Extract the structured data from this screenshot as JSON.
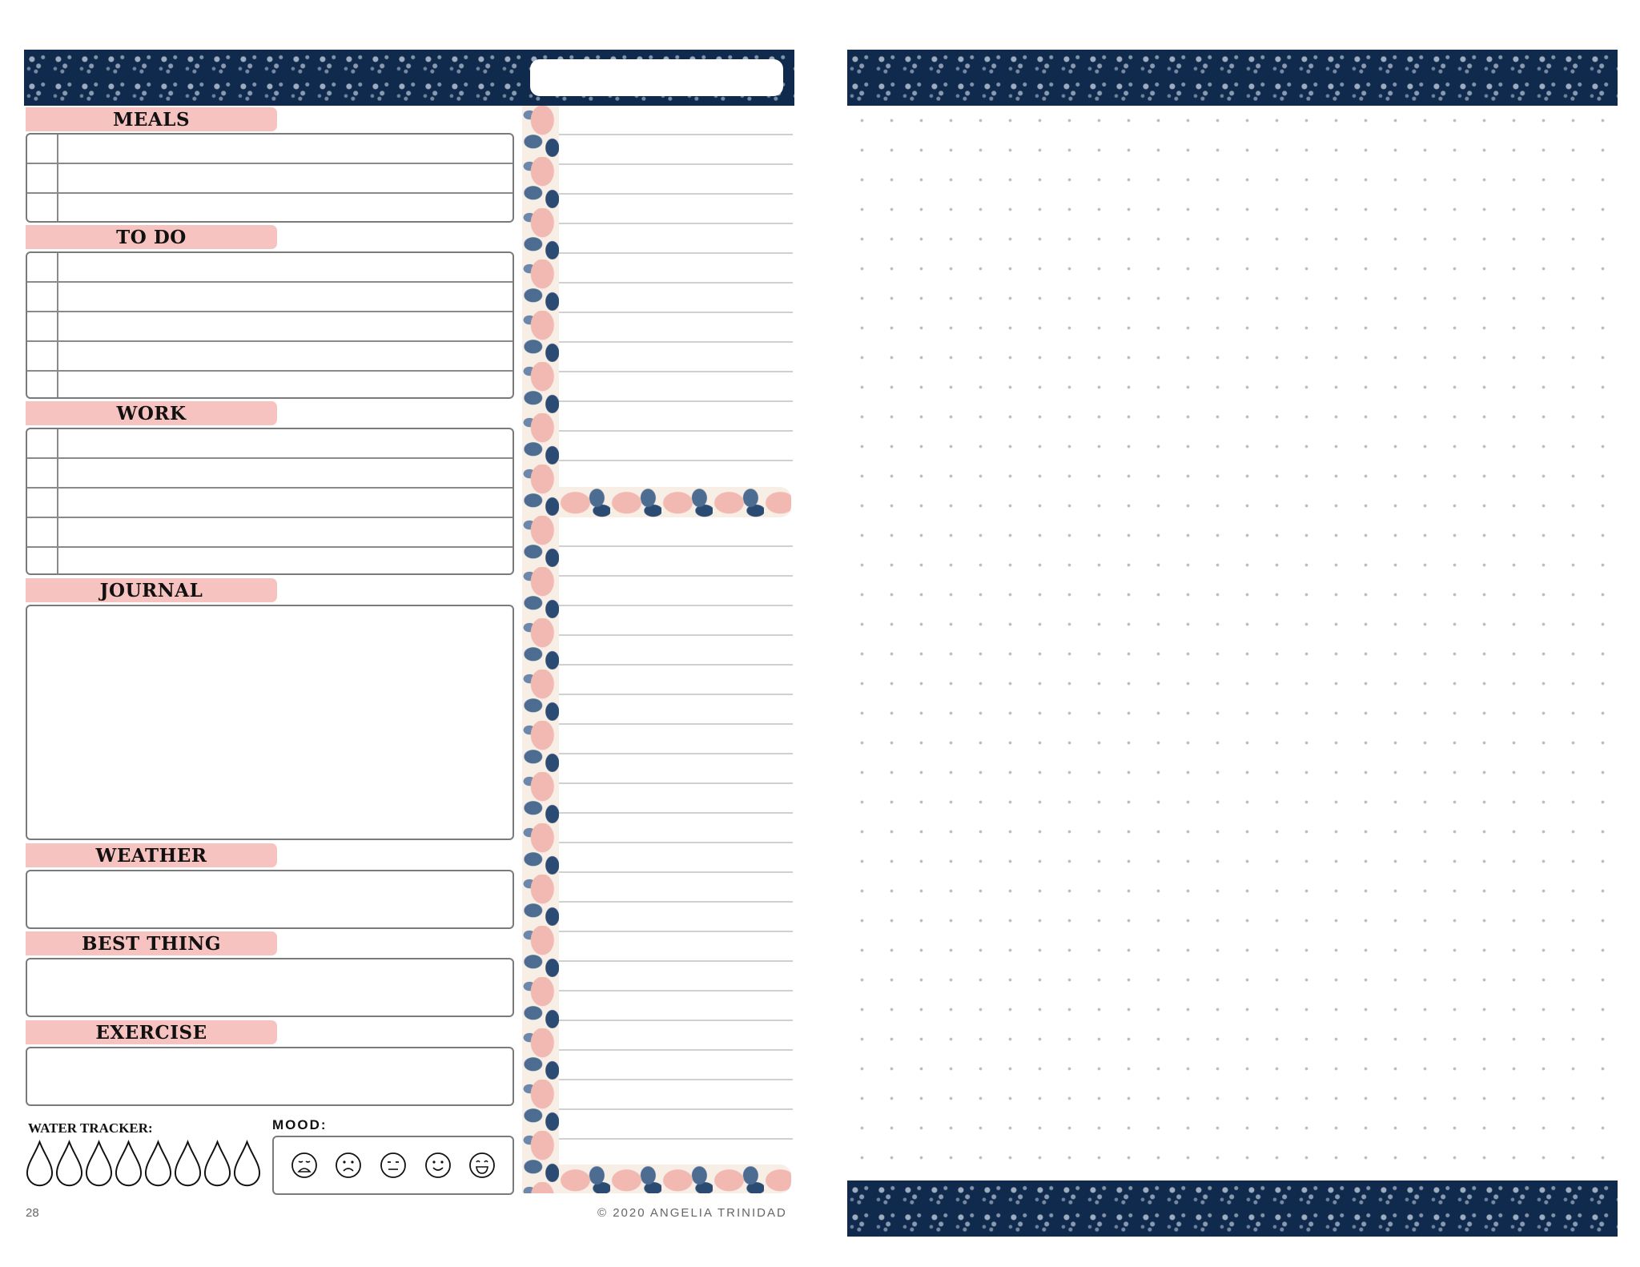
{
  "sections": {
    "meals": "MEALS",
    "todo": "TO DO",
    "work": "WORK",
    "journal": "JOURNAL",
    "weather": "WEATHER",
    "best_thing": "BEST THING",
    "exercise": "EXERCISE"
  },
  "water_tracker": {
    "label": "WATER TRACKER:",
    "drop_count": 8
  },
  "mood": {
    "label": "MOOD:",
    "faces": [
      "crying-face-icon",
      "sad-face-icon",
      "neutral-face-icon",
      "smiling-face-icon",
      "laughing-face-icon"
    ]
  },
  "footer": {
    "page_number": "28",
    "copyright": "© 2020 ANGELIA TRINIDAD"
  },
  "colors": {
    "navy": "#0f2a4d",
    "pink": "#f6c3c0",
    "cream": "#f7efe6",
    "outline": "#7a7a7a"
  }
}
